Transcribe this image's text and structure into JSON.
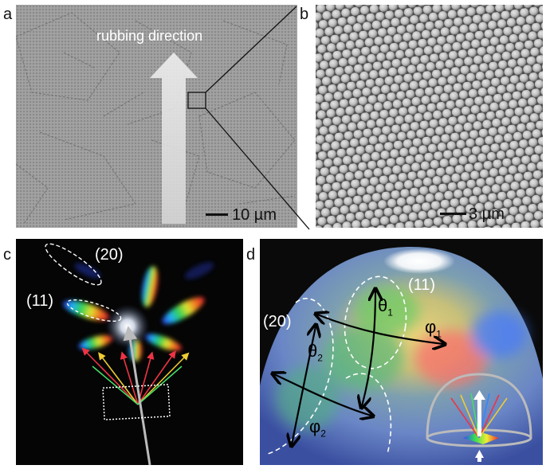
{
  "panel_a": {
    "label": "a",
    "arrow_text": "rubbing direction",
    "scale_text": "10 µm"
  },
  "panel_b": {
    "label": "b",
    "scale_text": "3 µm"
  },
  "panel_c": {
    "label": "c",
    "order_20": "(20)",
    "order_11": "(11)"
  },
  "panel_d": {
    "label": "d",
    "order_11": "(11)",
    "order_20": "(20)",
    "theta1": "θ",
    "theta1_sub": "1",
    "phi1": "φ",
    "phi1_sub": "1",
    "theta2": "θ",
    "theta2_sub": "2",
    "phi2": "φ",
    "phi2_sub": "2"
  },
  "colors": {
    "sem_gray": "#9a9a9a",
    "background_dark": "#050505",
    "spectrum": [
      "#3344ff",
      "#22bbff",
      "#33dd55",
      "#eeee33",
      "#ff7722",
      "#ee2233"
    ]
  }
}
